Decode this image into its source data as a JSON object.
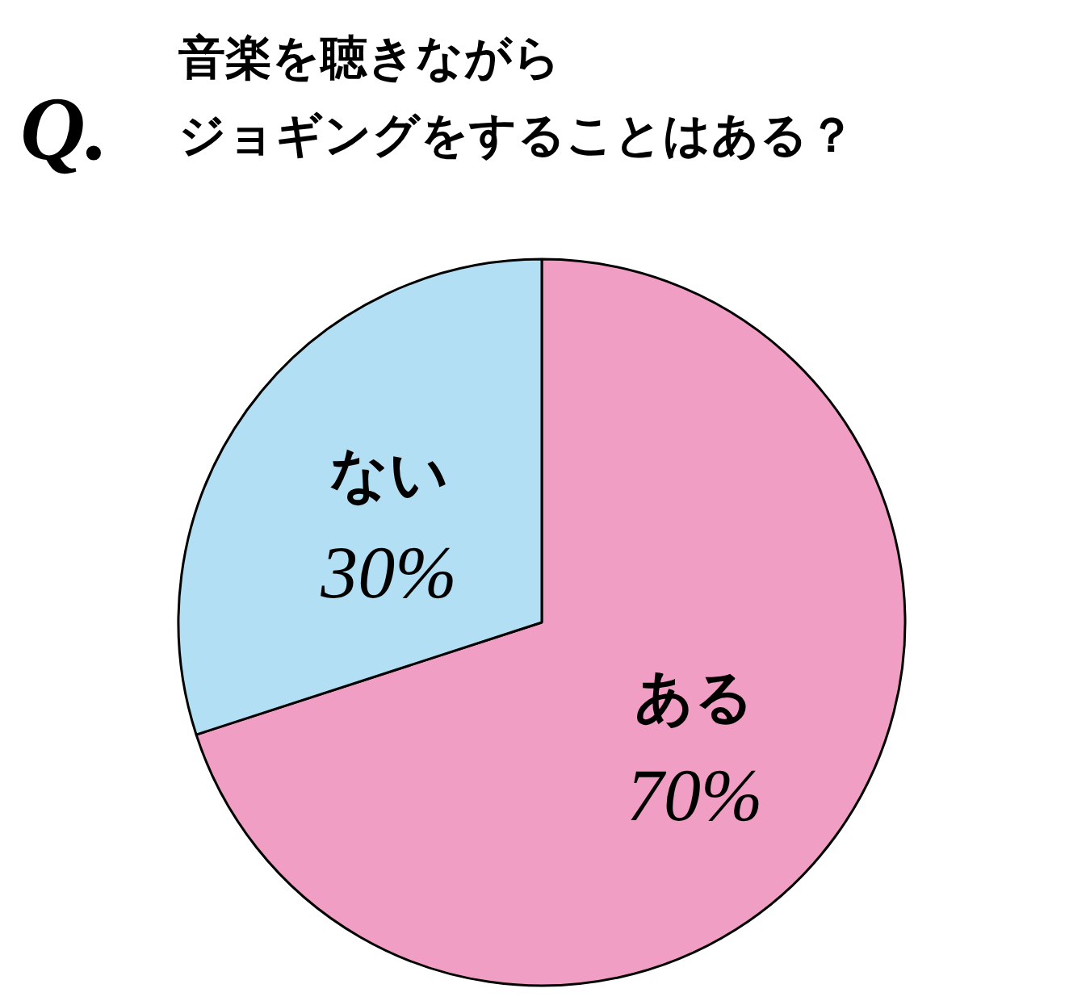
{
  "chart_data": {
    "type": "pie",
    "title": "音楽を聴きながらジョギングをすることはある？",
    "annotations": [
      "Q."
    ],
    "categories": [
      "ある",
      "ない"
    ],
    "values": [
      70,
      30
    ],
    "colors": [
      "#f09ec4",
      "#b3dff5"
    ],
    "value_labels": [
      "70%",
      "30%"
    ]
  }
}
